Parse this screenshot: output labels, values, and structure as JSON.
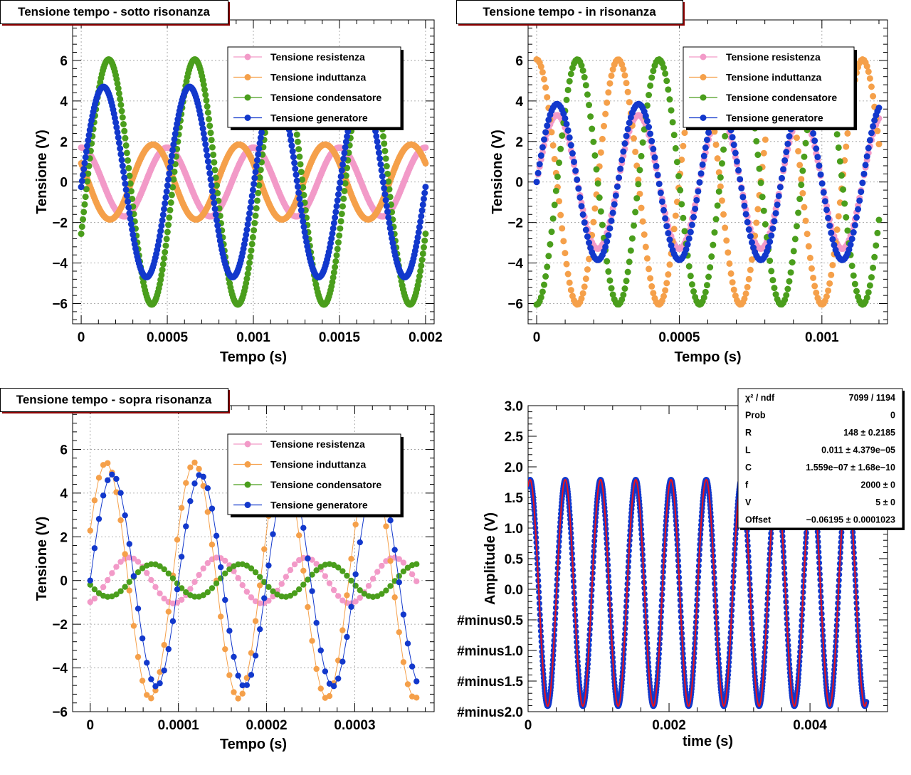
{
  "colors": {
    "resistenza": "#f29ac8",
    "induttanza": "#f5a04a",
    "condensatore": "#4a9e1c",
    "generatore": "#1238cc",
    "fit": "#e8121e",
    "title_border": "#8b0000"
  },
  "chart_data": [
    {
      "type": "line",
      "title": "Tensione tempo - sotto risonanza",
      "xlabel": "Tempo (s)",
      "ylabel": "Tensione (V)",
      "xlim": [
        -5e-05,
        0.00205
      ],
      "ylim": [
        -7,
        8
      ],
      "x_ticks": [
        "0",
        "0.0005",
        "0.001",
        "0.0015",
        "0.002"
      ],
      "y_ticks": [
        "−6",
        "−4",
        "−2",
        "0",
        "2",
        "4",
        "6"
      ],
      "grid": true,
      "legend_placement": "top-right",
      "signal": {
        "frequency_hz": 2000,
        "t_start": 0,
        "t_end": 0.002,
        "n_points": 400,
        "connected": false
      },
      "series": [
        {
          "name": "Tensione resistenza",
          "amplitude": 1.7,
          "phase_deg": 90,
          "color_key": "resistenza"
        },
        {
          "name": "Tensione induttanza",
          "amplitude": 1.85,
          "phase_deg": 150,
          "color_key": "induttanza"
        },
        {
          "name": "Tensione condensatore",
          "amplitude": 6.05,
          "phase_deg": -25,
          "color_key": "condensatore"
        },
        {
          "name": "Tensione generatore",
          "amplitude": 4.7,
          "phase_deg": -3,
          "color_key": "generatore"
        }
      ]
    },
    {
      "type": "line",
      "title": "Tensione tempo - in risonanza",
      "xlabel": "Tempo (s)",
      "ylabel": "Tensione (V)",
      "xlim": [
        -3e-05,
        0.00123
      ],
      "ylim": [
        -7,
        8
      ],
      "x_ticks": [
        "0",
        "0.0005",
        "0.001"
      ],
      "y_ticks": [
        "−6",
        "−4",
        "−2",
        "0",
        "2",
        "4",
        "6"
      ],
      "grid": true,
      "legend_placement": "top-right",
      "signal": {
        "frequency_hz": 3500,
        "t_start": 0,
        "t_end": 0.0012,
        "n_points": 230,
        "connected": false
      },
      "series": [
        {
          "name": "Tensione resistenza",
          "amplitude": 3.3,
          "phase_deg": 0,
          "color_key": "resistenza"
        },
        {
          "name": "Tensione induttanza",
          "amplitude": 6.05,
          "phase_deg": 90,
          "color_key": "induttanza"
        },
        {
          "name": "Tensione condensatore",
          "amplitude": 6.05,
          "phase_deg": -90,
          "color_key": "condensatore"
        },
        {
          "name": "Tensione generatore",
          "amplitude": 3.85,
          "phase_deg": 0,
          "color_key": "generatore"
        }
      ]
    },
    {
      "type": "line",
      "title": "Tensione tempo - sopra risonanza",
      "xlabel": "Tempo (s)",
      "ylabel": "Tensione (V)",
      "xlim": [
        -2e-05,
        0.00039
      ],
      "ylim": [
        -6,
        8
      ],
      "x_ticks": [
        "0",
        "0.0001",
        "0.0002",
        "0.0003"
      ],
      "y_ticks": [
        "−6",
        "−4",
        "−2",
        "0",
        "2",
        "4",
        "6"
      ],
      "grid": true,
      "legend_placement": "top-right",
      "signal": {
        "frequency_hz": 10000,
        "t_start": 0,
        "t_end": 0.00037,
        "n_points": 76,
        "connected": true
      },
      "series": [
        {
          "name": "Tensione resistenza",
          "amplitude": 1.05,
          "phase_deg": -70,
          "color_key": "resistenza"
        },
        {
          "name": "Tensione induttanza",
          "amplitude": 5.4,
          "phase_deg": 25,
          "color_key": "induttanza"
        },
        {
          "name": "Tensione condensatore",
          "amplitude": 0.75,
          "phase_deg": -165,
          "color_key": "condensatore"
        },
        {
          "name": "Tensione generatore",
          "amplitude": 4.85,
          "phase_deg": 0,
          "color_key": "generatore"
        }
      ]
    },
    {
      "type": "line",
      "title": "",
      "xlabel": "time (s)",
      "ylabel": "Amplitude (V)",
      "xlim": [
        0,
        0.0051
      ],
      "ylim": [
        -2.0,
        3.0
      ],
      "x_ticks": [
        "0",
        "0.002",
        "0.004"
      ],
      "y_ticks": [
        "#minus2.0",
        "#minus1.5",
        "#minus1.0",
        "#minus0.5",
        "0.0",
        "0.5",
        "1.0",
        "1.5",
        "2.0",
        "2.5",
        "3.0"
      ],
      "grid": false,
      "signal": {
        "frequency_hz": 2000,
        "t_start": 0,
        "t_end": 0.0048,
        "n_points": 1200,
        "connected": false
      },
      "data_series": {
        "amplitude": 1.85,
        "phase_deg": 70,
        "offset": -0.06,
        "color_key": "generatore"
      },
      "fit_series": {
        "amplitude": 1.85,
        "phase_deg": 70,
        "offset": -0.06,
        "color_key": "fit"
      },
      "stats": [
        {
          "label": "χ² / ndf",
          "value": "7099 / 1194"
        },
        {
          "label": "Prob",
          "value": "0"
        },
        {
          "label": "R",
          "value": "148 ± 0.2185"
        },
        {
          "label": "L",
          "value": "0.011 ± 4.379e−05"
        },
        {
          "label": "C",
          "value": "1.559e−07 ± 1.68e−10"
        },
        {
          "label": "f",
          "value": "2000 ±     0"
        },
        {
          "label": "V",
          "value": "5 ±     0"
        },
        {
          "label": "Offset",
          "value": "−0.06195 ± 0.0001023"
        }
      ]
    }
  ]
}
